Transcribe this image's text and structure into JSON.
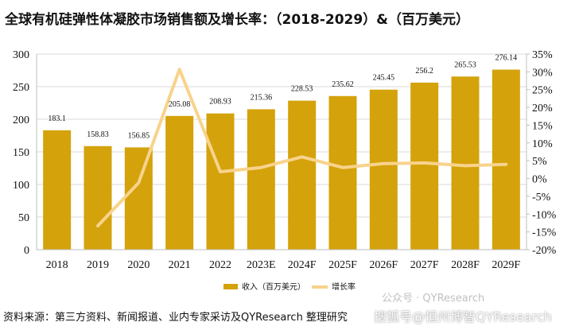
{
  "title": "全球有机硅弹性体凝胶市场销售额及增长率：（2018-2029）&（百万美元）",
  "source": "资料来源：第三方资料、新闻报道、业内专家采访及QYResearch 整理研究",
  "watermark": {
    "line1": "公众号 · QYResearch",
    "line2": "搜狐号@恒州博智QYResearch"
  },
  "colors": {
    "bar": "#D4A20B",
    "line": "#F8D38C",
    "grid": "#D9D9D9",
    "axis": "#BFBFBF",
    "text": "#111111"
  },
  "chart_data": {
    "type": "bar",
    "categories": [
      "2018",
      "2019",
      "2020",
      "2021",
      "2022",
      "2023E",
      "2024F",
      "2025F",
      "2026F",
      "2027F",
      "2028F",
      "2029F"
    ],
    "series": [
      {
        "name": "收入（百万美元）",
        "type": "bar",
        "axis": "left",
        "values": [
          183.1,
          158.83,
          156.85,
          205.08,
          208.93,
          215.36,
          228.53,
          235.62,
          245.45,
          256.2,
          265.53,
          276.14
        ],
        "labels": [
          "183.1",
          "158.83",
          "156.85",
          "205.08",
          "208.93",
          "215.36",
          "228.53",
          "235.62",
          "245.45",
          "256.2",
          "265.53",
          "276.14"
        ]
      },
      {
        "name": "增长率",
        "type": "line",
        "axis": "right",
        "values": [
          null,
          -13.3,
          -1.2,
          30.7,
          1.9,
          3.1,
          6.1,
          3.1,
          4.2,
          4.4,
          3.6,
          4.0
        ]
      }
    ],
    "y_left": {
      "min": 0,
      "max": 300,
      "step": 50,
      "ticks": [
        "0",
        "50",
        "100",
        "150",
        "200",
        "250",
        "300"
      ]
    },
    "y_right": {
      "min": -20,
      "max": 35,
      "step": 5,
      "ticks": [
        "-20%",
        "-15%",
        "-10%",
        "-5%",
        "0%",
        "5%",
        "10%",
        "15%",
        "20%",
        "25%",
        "30%",
        "35%"
      ]
    },
    "grid": true,
    "legend_position": "bottom"
  }
}
